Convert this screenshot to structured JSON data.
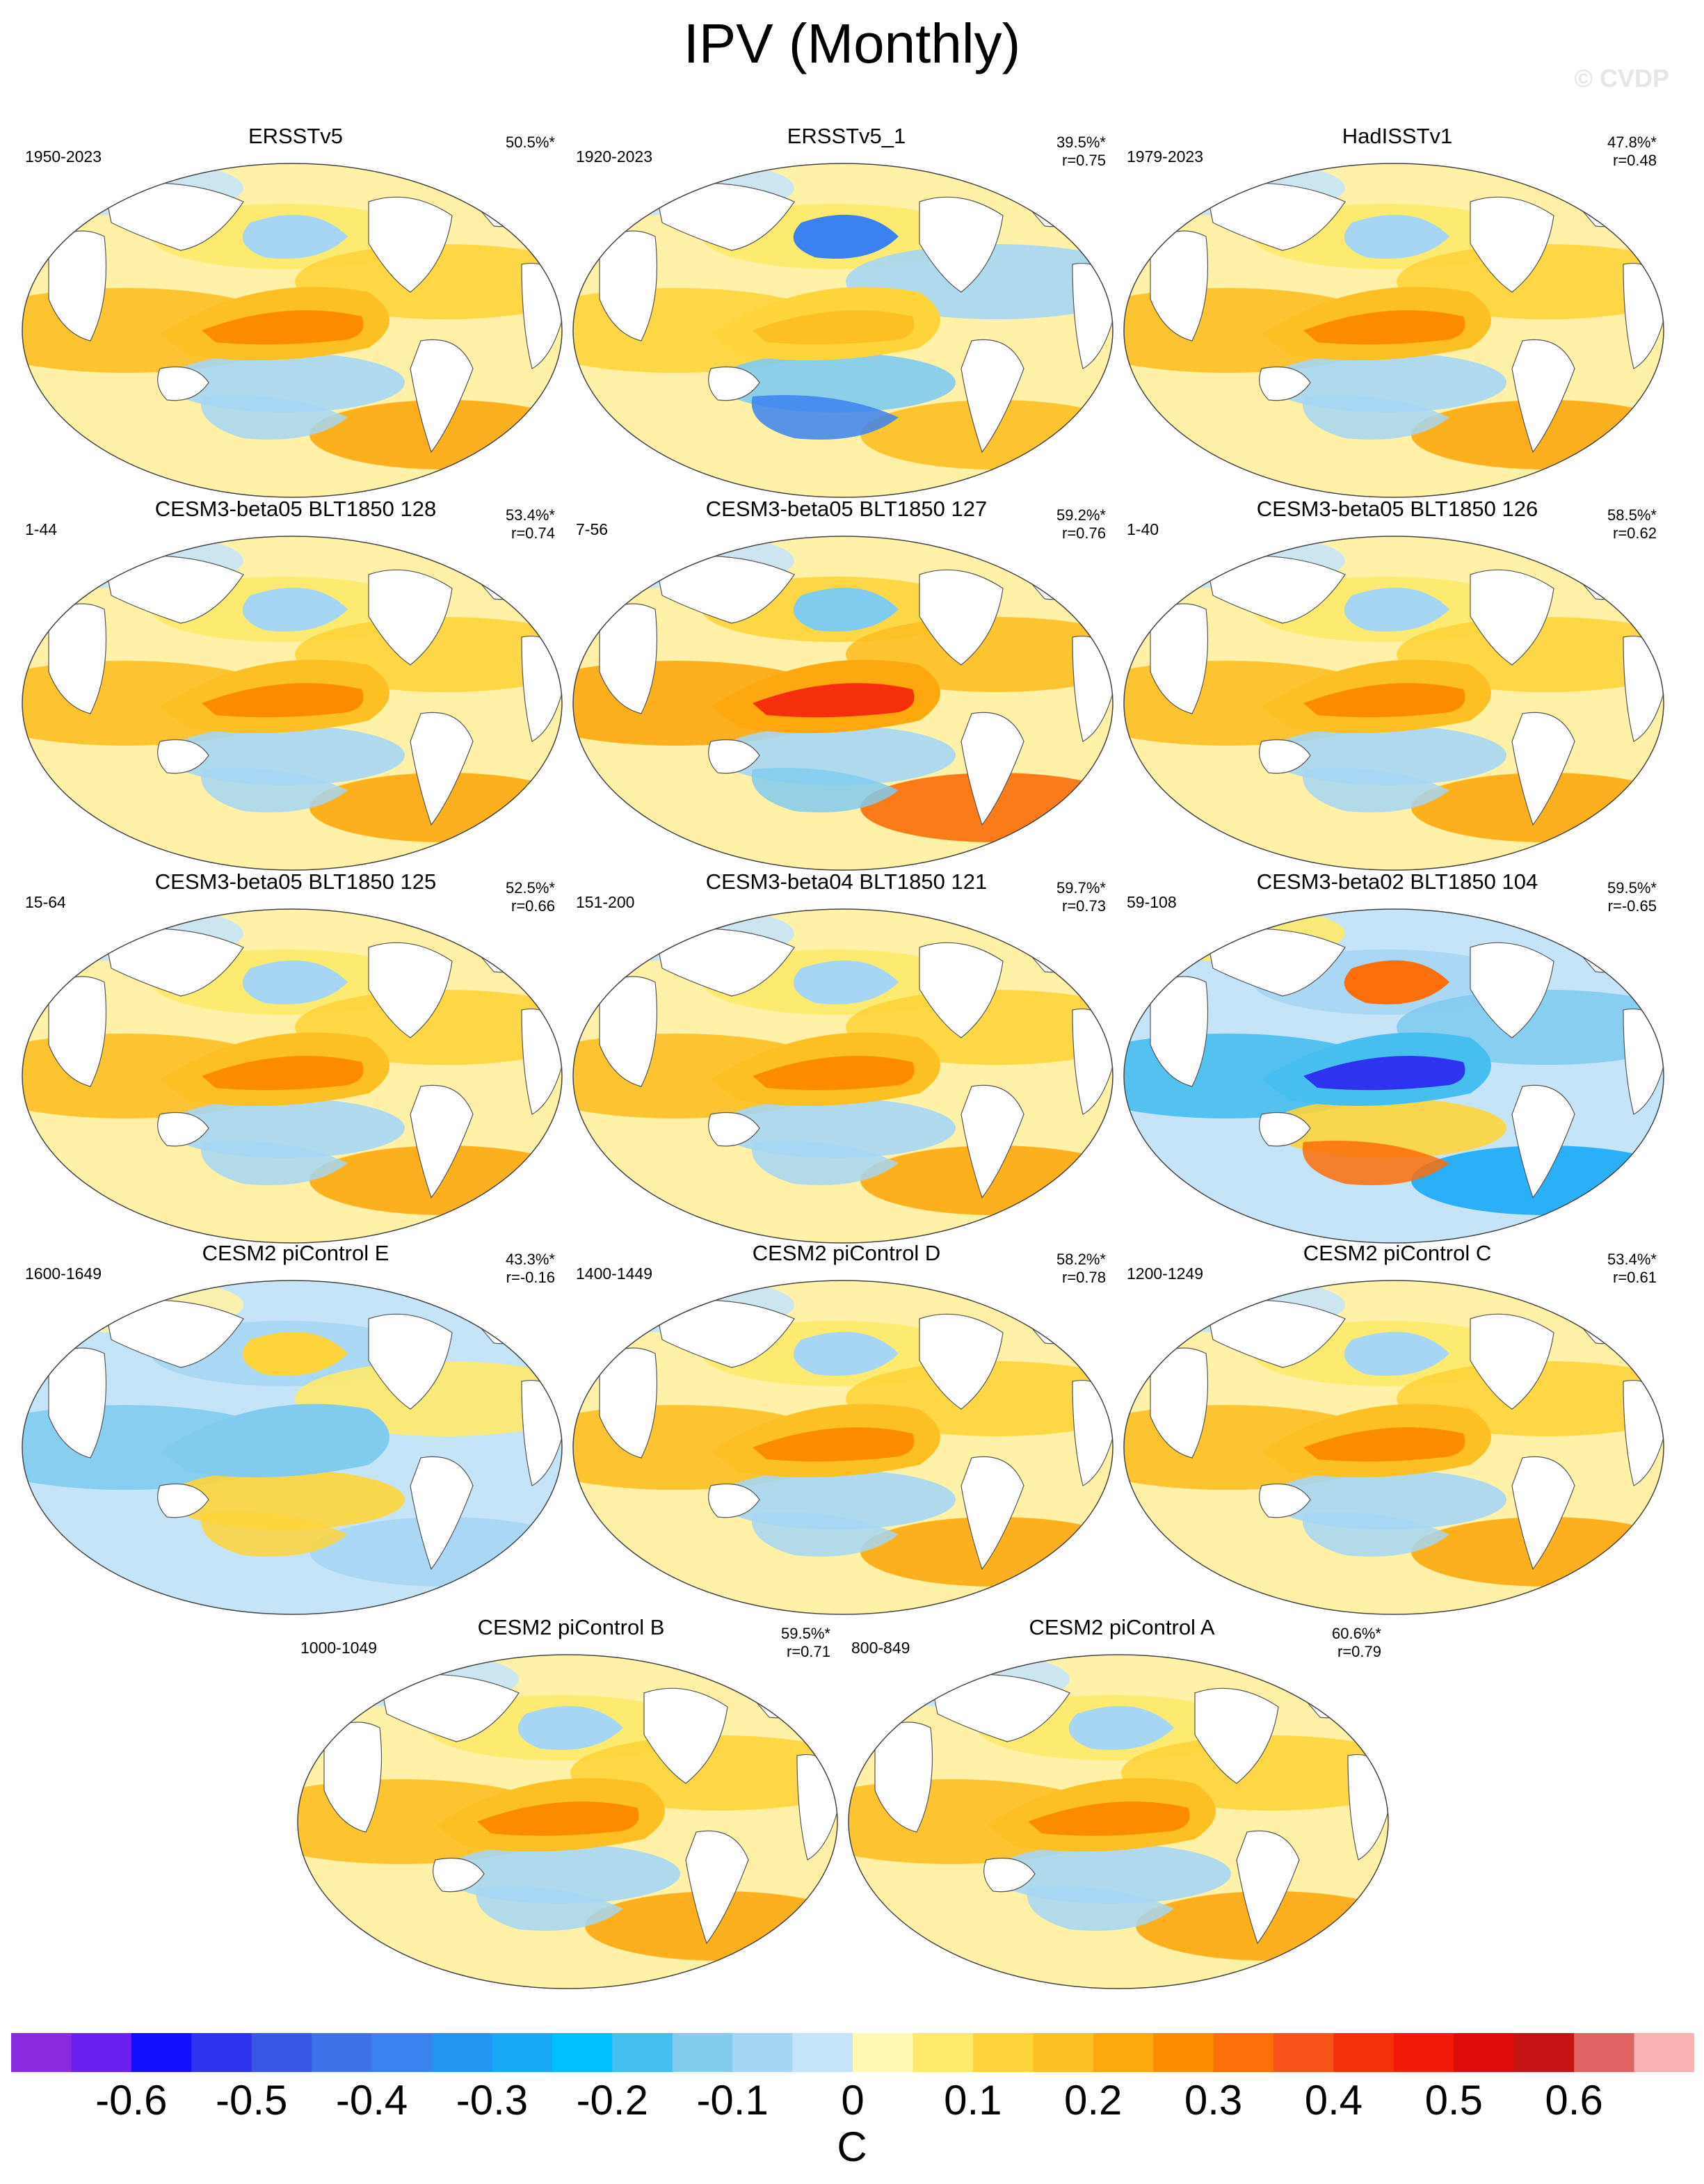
{
  "title": "IPV (Monthly)",
  "watermark": "© CVDP",
  "panels": [
    {
      "name": "ERSSTv5",
      "period": "1950-2023",
      "pct": "50.5%*",
      "r": "",
      "pattern": "pos"
    },
    {
      "name": "ERSSTv5_1",
      "period": "1920-2023",
      "pct": "39.5%*",
      "r": "r=0.75",
      "pattern": "mixed"
    },
    {
      "name": "HadISSTv1",
      "period": "1979-2023",
      "pct": "47.8%*",
      "r": "r=0.48",
      "pattern": "pos"
    },
    {
      "name": "CESM3-beta05 BLT1850 128",
      "period": "1-44",
      "pct": "53.4%*",
      "r": "r=0.74",
      "pattern": "pos"
    },
    {
      "name": "CESM3-beta05 BLT1850 127",
      "period": "7-56",
      "pct": "59.2%*",
      "r": "r=0.76",
      "pattern": "strong"
    },
    {
      "name": "CESM3-beta05 BLT1850 126",
      "period": "1-40",
      "pct": "58.5%*",
      "r": "r=0.62",
      "pattern": "pos"
    },
    {
      "name": "CESM3-beta05 BLT1850 125",
      "period": "15-64",
      "pct": "52.5%*",
      "r": "r=0.66",
      "pattern": "pos"
    },
    {
      "name": "CESM3-beta04 BLT1850 121",
      "period": "151-200",
      "pct": "59.7%*",
      "r": "r=0.73",
      "pattern": "pos"
    },
    {
      "name": "CESM3-beta02 BLT1850 104",
      "period": "59-108",
      "pct": "59.5%*",
      "r": "r=-0.65",
      "pattern": "neg"
    },
    {
      "name": "CESM2 piControl E",
      "period": "1600-1649",
      "pct": "43.3%*",
      "r": "r=-0.16",
      "pattern": "weakneg"
    },
    {
      "name": "CESM2 piControl D",
      "period": "1400-1449",
      "pct": "58.2%*",
      "r": "r=0.78",
      "pattern": "pos"
    },
    {
      "name": "CESM2 piControl C",
      "period": "1200-1249",
      "pct": "53.4%*",
      "r": "r=0.61",
      "pattern": "pos"
    },
    {
      "name": "CESM2 piControl B",
      "period": "1000-1049",
      "pct": "59.5%*",
      "r": "r=0.71",
      "pattern": "pos"
    },
    {
      "name": "CESM2 piControl A",
      "period": "800-849",
      "pct": "60.6%*",
      "r": "r=0.79",
      "pattern": "pos"
    }
  ],
  "colorbar": {
    "colors": [
      "#8a2be2",
      "#6a1fef",
      "#1010ff",
      "#2e33f0",
      "#3557e4",
      "#3d72e8",
      "#3b82f0",
      "#2196f3",
      "#19a8f6",
      "#00bfff",
      "#47bef0",
      "#81cbef",
      "#a6d6f3",
      "#c5e4f8",
      "#fff8b3",
      "#fde96a",
      "#fdd43a",
      "#fcbf24",
      "#fca80e",
      "#fb8c00",
      "#fb6e0a",
      "#f7521a",
      "#f52f0c",
      "#f21908",
      "#dd0b0b",
      "#c51313",
      "#e06363",
      "#f9b3b3"
    ],
    "labels": [
      "-0.6",
      "-0.5",
      "-0.4",
      "-0.3",
      "-0.2",
      "-0.1",
      "0",
      "0.1",
      "0.2",
      "0.3",
      "0.4",
      "0.5",
      "0.6"
    ],
    "units": "C"
  }
}
